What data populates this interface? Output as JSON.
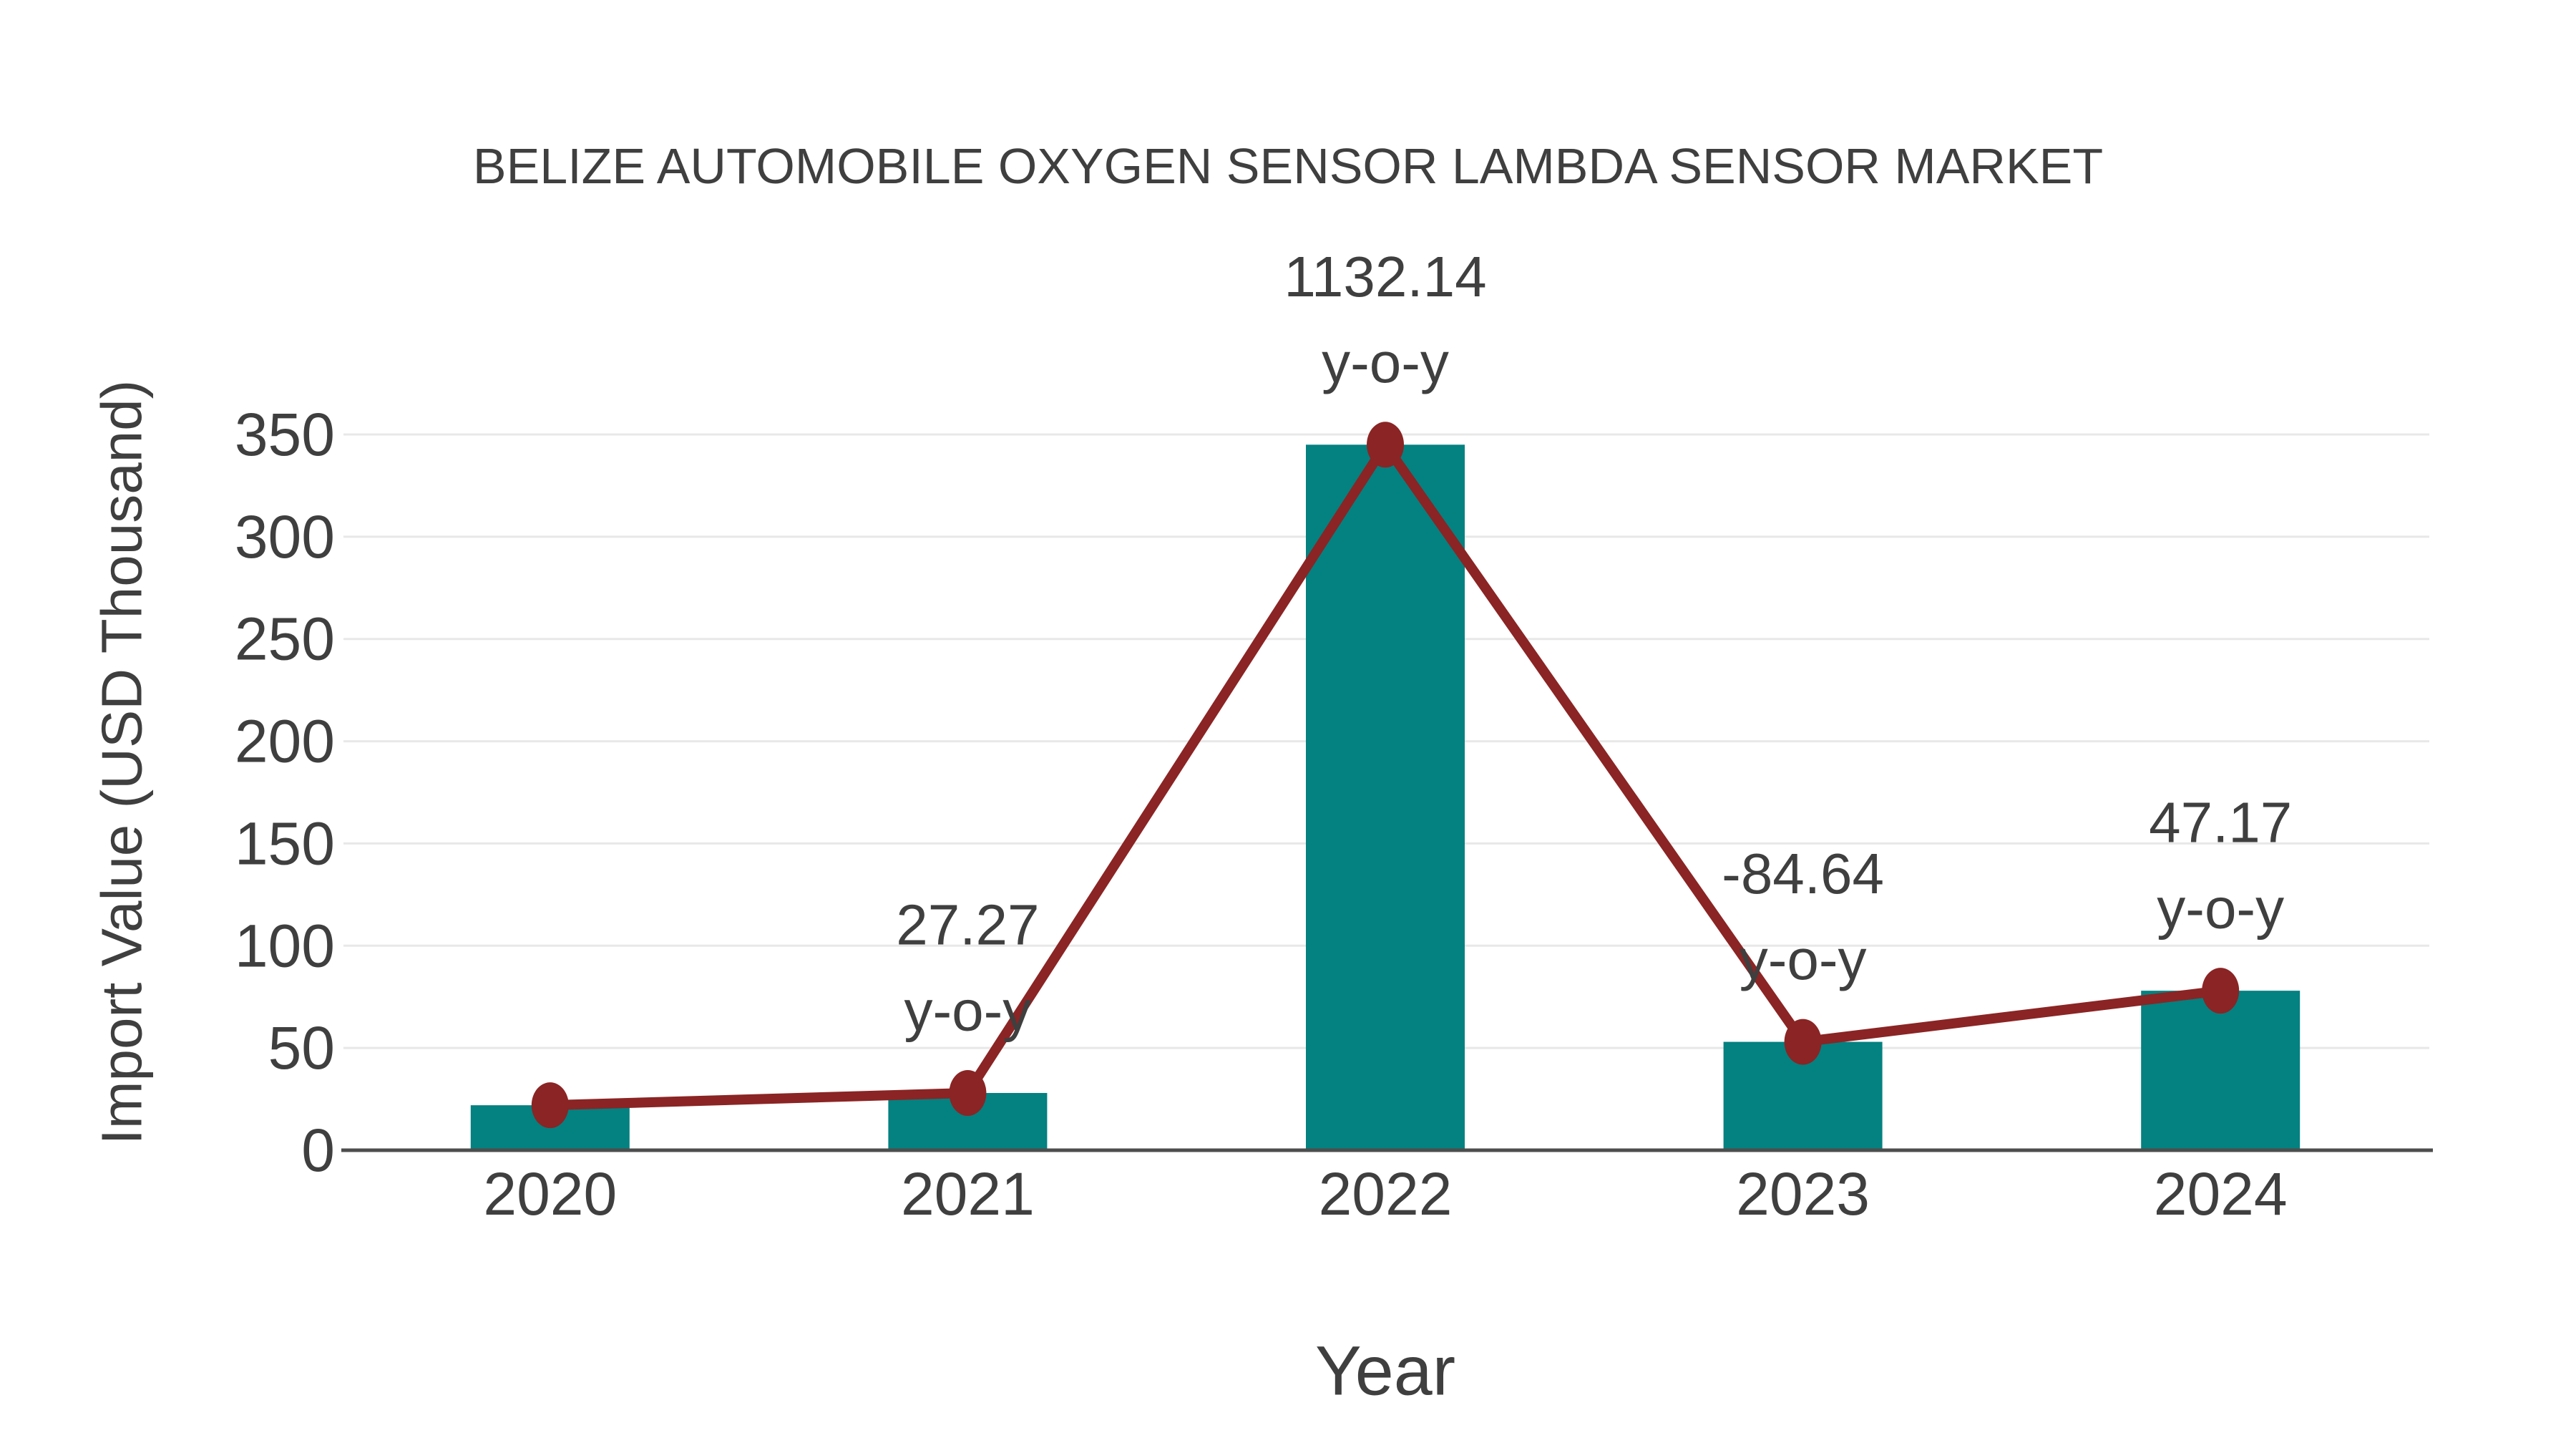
{
  "chart_data": {
    "type": "bar+line",
    "title": "BELIZE AUTOMOBILE OXYGEN SENSOR LAMBDA SENSOR MARKET",
    "xlabel": "Year",
    "ylabel": "Import Value (USD Thousand)",
    "categories": [
      "2020",
      "2021",
      "2022",
      "2023",
      "2024"
    ],
    "series": [
      {
        "name": "Import Value",
        "type": "bar",
        "values": [
          22,
          28,
          345,
          53,
          78
        ]
      },
      {
        "name": "y-o-y growth (%)",
        "type": "line",
        "values": [
          null,
          27.27,
          1132.14,
          -84.64,
          47.17
        ]
      }
    ],
    "annotations": [
      {
        "category": "2021",
        "value_label": "27.27",
        "series_label": "y-o-y"
      },
      {
        "category": "2022",
        "value_label": "1132.14",
        "series_label": "y-o-y"
      },
      {
        "category": "2023",
        "value_label": "-84.64",
        "series_label": "y-o-y"
      },
      {
        "category": "2024",
        "value_label": "47.17",
        "series_label": "y-o-y"
      }
    ],
    "ylim": [
      0,
      350
    ],
    "y_ticks": [
      0,
      50,
      100,
      150,
      200,
      250,
      300,
      350
    ],
    "grid": "horizontal",
    "legend": "none",
    "colors": {
      "bar": "#048181",
      "line": "#8b2424",
      "marker": "#8b2424",
      "grid": "#e8e8e8",
      "axis": "#4d4d4d",
      "text": "#3f3f3f",
      "background": "#ffffff"
    }
  }
}
